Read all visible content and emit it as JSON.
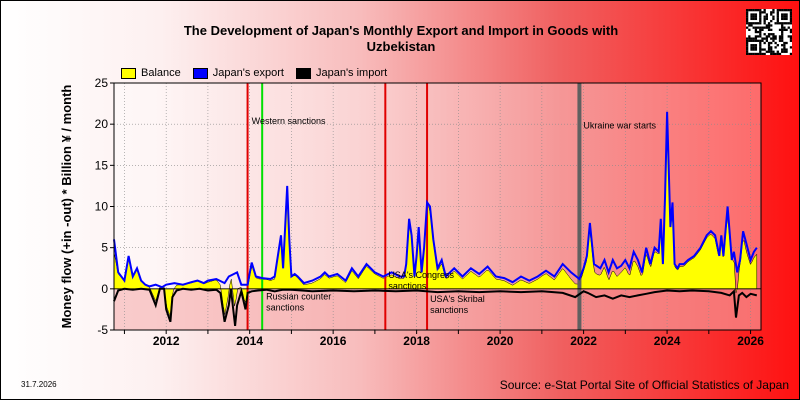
{
  "title_line1": "The Development of Japan's Monthly Export and Import in Goods with",
  "title_line2": "Uzbekistan",
  "date_stamp": "31.7.2026",
  "source": "Source: e-Stat Portal Site of Official Statistics of Japan",
  "legend": [
    {
      "label": "Balance",
      "color": "#ffff00"
    },
    {
      "label": "Japan's export",
      "color": "#0000ff"
    },
    {
      "label": "Japan's import",
      "color": "#000000"
    }
  ],
  "chart_data": {
    "type": "area",
    "ylabel": "Money flow (+in -out) * Billion ¥ / month",
    "xlabel": "",
    "xlim": [
      2010.75,
      2026.25
    ],
    "ylim": [
      -5,
      25
    ],
    "yticks": [
      -5,
      0,
      5,
      10,
      15,
      20,
      25
    ],
    "xticks": [
      2012,
      2014,
      2016,
      2018,
      2020,
      2022,
      2024,
      2026
    ],
    "ytick_labels": [
      "-5",
      "0",
      "5",
      "10",
      "15",
      "20",
      "25"
    ],
    "xtick_labels": [
      "2012",
      "2014",
      "2016",
      "2018",
      "2020",
      "2022",
      "2024",
      "2026"
    ],
    "grid": true,
    "legend_position": "top-left",
    "series": [
      {
        "name": "Japan's export",
        "color": "#0000ff",
        "x": [
          2010.75,
          2010.85,
          2011.0,
          2011.1,
          2011.2,
          2011.3,
          2011.4,
          2011.5,
          2011.6,
          2011.75,
          2011.9,
          2012.0,
          2012.2,
          2012.4,
          2012.6,
          2012.75,
          2012.9,
          2013.0,
          2013.2,
          2013.4,
          2013.5,
          2013.7,
          2013.8,
          2013.95,
          2014.05,
          2014.15,
          2014.3,
          2014.5,
          2014.6,
          2014.75,
          2014.8,
          2014.9,
          2014.95,
          2015.0,
          2015.08,
          2015.15,
          2015.3,
          2015.5,
          2015.7,
          2015.8,
          2015.9,
          2016.1,
          2016.3,
          2016.45,
          2016.6,
          2016.8,
          2017.0,
          2017.2,
          2017.4,
          2017.6,
          2017.7,
          2017.75,
          2017.82,
          2017.88,
          2017.95,
          2018.0,
          2018.05,
          2018.12,
          2018.18,
          2018.25,
          2018.32,
          2018.4,
          2018.5,
          2018.6,
          2018.7,
          2018.9,
          2019.1,
          2019.3,
          2019.5,
          2019.7,
          2019.9,
          2020.1,
          2020.3,
          2020.5,
          2020.7,
          2020.9,
          2021.1,
          2021.3,
          2021.5,
          2021.7,
          2021.9,
          2022.0,
          2022.08,
          2022.15,
          2022.25,
          2022.4,
          2022.5,
          2022.6,
          2022.7,
          2022.8,
          2022.9,
          2023.0,
          2023.1,
          2023.2,
          2023.3,
          2023.4,
          2023.5,
          2023.6,
          2023.7,
          2023.8,
          2023.85,
          2023.9,
          2023.95,
          2024.0,
          2024.08,
          2024.13,
          2024.18,
          2024.25,
          2024.3,
          2024.4,
          2024.5,
          2024.65,
          2024.8,
          2024.95,
          2025.05,
          2025.15,
          2025.25,
          2025.3,
          2025.35,
          2025.45,
          2025.55,
          2025.6,
          2025.68,
          2025.75,
          2025.82,
          2025.9,
          2026.0,
          2026.08,
          2026.15
        ],
        "y": [
          6,
          2,
          1,
          4,
          1.5,
          2.5,
          1,
          0.5,
          0.3,
          0.5,
          0.2,
          0.5,
          0.7,
          0.5,
          0.8,
          1,
          0.7,
          1,
          1.2,
          0.7,
          1.5,
          2,
          0.5,
          0.5,
          3.2,
          1.5,
          1.3,
          1.2,
          1.5,
          6.5,
          2.5,
          12.5,
          6,
          1.5,
          1.8,
          1.5,
          0.7,
          1,
          1.5,
          2,
          1.5,
          1.8,
          1,
          2.5,
          1.5,
          3,
          2,
          1.5,
          2,
          1.5,
          1.5,
          3,
          8.5,
          6.5,
          1.5,
          4,
          7.5,
          2,
          5,
          10.5,
          10,
          6,
          2.5,
          3.5,
          1.5,
          2.5,
          1.5,
          2.5,
          1.8,
          2.7,
          1.5,
          1.3,
          0.8,
          1.5,
          1,
          1.5,
          2.2,
          1.5,
          3,
          2,
          1.2,
          2.5,
          4,
          8,
          3,
          2.5,
          3.5,
          2,
          3.5,
          2.5,
          2.8,
          3.5,
          2.5,
          4.5,
          3.5,
          2,
          5,
          3,
          5,
          4.5,
          8.5,
          3,
          11,
          21.5,
          7.5,
          10.5,
          3,
          2.5,
          3,
          3,
          3.5,
          4,
          5,
          6.5,
          7,
          6.5,
          4,
          6.5,
          4,
          10,
          3.5,
          4.5,
          2,
          3.5,
          7,
          5.5,
          3.5,
          4.5,
          5
        ]
      },
      {
        "name": "Japan's import",
        "color": "#000000",
        "x": [
          2010.75,
          2010.85,
          2011.0,
          2011.2,
          2011.4,
          2011.6,
          2011.75,
          2011.85,
          2011.95,
          2012.0,
          2012.1,
          2012.15,
          2012.25,
          2012.4,
          2012.6,
          2012.8,
          2013.0,
          2013.2,
          2013.3,
          2013.4,
          2013.5,
          2013.55,
          2013.65,
          2013.7,
          2013.8,
          2013.9,
          2013.95,
          2014.05,
          2014.2,
          2014.4,
          2014.6,
          2014.8,
          2015.0,
          2015.5,
          2016.0,
          2016.5,
          2017.0,
          2017.5,
          2018.0,
          2018.5,
          2019.0,
          2019.5,
          2020.0,
          2020.5,
          2021.0,
          2021.5,
          2021.8,
          2022.0,
          2022.1,
          2022.3,
          2022.5,
          2022.7,
          2022.9,
          2023.1,
          2023.3,
          2023.5,
          2023.7,
          2024.0,
          2024.3,
          2024.6,
          2025.0,
          2025.3,
          2025.5,
          2025.6,
          2025.65,
          2025.72,
          2025.8,
          2025.9,
          2026.0,
          2026.15
        ],
        "y": [
          -1.5,
          -0.2,
          0,
          -0.1,
          0,
          -0.1,
          -2,
          0,
          0,
          -2.5,
          -4,
          -1,
          -0.2,
          0,
          -0.1,
          0,
          -0.2,
          -0.1,
          -0.5,
          -4,
          -2,
          0,
          -4.5,
          -2,
          -0.3,
          -2.5,
          -0.5,
          -0.3,
          -0.2,
          -0.1,
          -0.3,
          -0.1,
          -0.1,
          -0.3,
          -0.2,
          -0.3,
          -0.2,
          -0.3,
          -0.2,
          -0.4,
          -0.3,
          -0.4,
          -0.3,
          -0.4,
          -0.3,
          -0.5,
          -1,
          -0.3,
          -0.5,
          -1,
          -0.8,
          -1.2,
          -0.8,
          -1,
          -0.8,
          -0.6,
          -0.4,
          -0.2,
          -0.3,
          -0.2,
          -0.3,
          -0.5,
          -0.8,
          -0.3,
          -3.5,
          -0.8,
          -0.5,
          -1,
          -0.6,
          -0.8
        ]
      },
      {
        "name": "Balance",
        "color": "#ffff00"
      }
    ],
    "event_lines": [
      {
        "x": 2013.95,
        "label": "",
        "color": "#e00000"
      },
      {
        "x": 2014.3,
        "label": "Russian counter\nsanctions",
        "color": "#00e000"
      },
      {
        "x": 2017.25,
        "label": "USA's Congress\nsanctions",
        "color": "#e00000"
      },
      {
        "x": 2018.25,
        "label": "USA's Skribal\nsanctions",
        "color": "#e00000"
      },
      {
        "x": 2021.9,
        "label": "Ukraine war starts",
        "color": "#606060"
      }
    ],
    "annotations": [
      {
        "text": "Western sanctions",
        "x": 2014.0,
        "y": 20
      }
    ]
  }
}
